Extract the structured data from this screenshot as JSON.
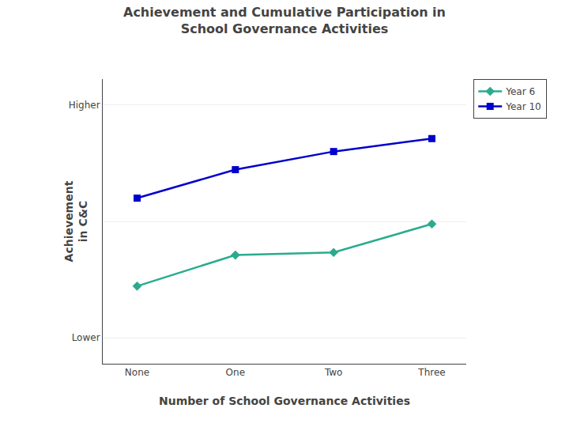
{
  "chart_data": {
    "type": "line",
    "title": "Achievement and Cumulative Participation in\nSchool Governance Activities",
    "xlabel": "Number of School Governance Activities",
    "ylabel": "Achievement\nin C&C",
    "categories": [
      "None",
      "One",
      "Two",
      "Three"
    ],
    "series": [
      {
        "name": "Year 6",
        "color": "#2aab8e",
        "marker": "diamond",
        "values": [
          3.5,
          4.1,
          4.15,
          4.7
        ]
      },
      {
        "name": "Year 10",
        "color": "#0000cc",
        "marker": "square",
        "values": [
          5.2,
          5.75,
          6.1,
          6.35
        ]
      }
    ],
    "ylim": [
      2.0,
      7.5
    ],
    "yticks": [
      {
        "value": 2.5,
        "label": "Lower"
      },
      {
        "value": 4.75,
        "label": null
      },
      {
        "value": 7.0,
        "label": "Higher"
      }
    ],
    "grid": true,
    "legend": "right"
  }
}
